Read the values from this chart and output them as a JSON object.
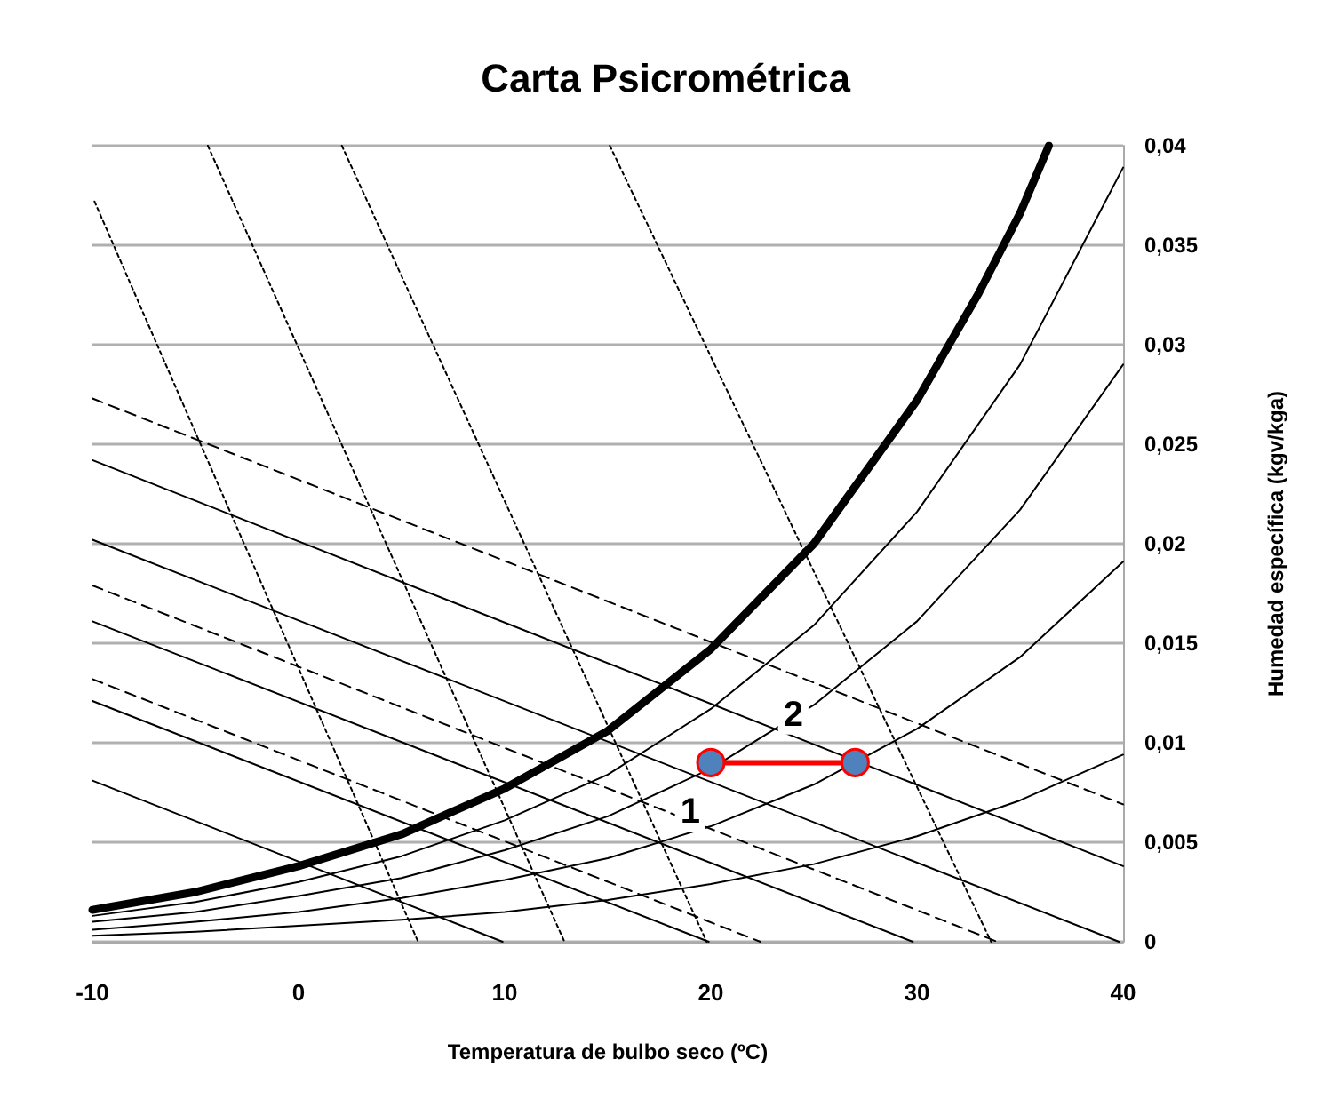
{
  "chart_data": {
    "type": "line",
    "title": "Carta Psicrométrica",
    "xlabel": "Temperatura de bulbo seco (ºC)",
    "ylabel": "Humedad específica (kgv/kga)",
    "xlim": [
      -10,
      40
    ],
    "xticks": [
      -10,
      0,
      10,
      20,
      30,
      40
    ],
    "ylim": [
      0,
      0.04
    ],
    "yticks": [
      {
        "value": 0,
        "label": "0"
      },
      {
        "value": 0.005,
        "label": "0,005"
      },
      {
        "value": 0.01,
        "label": "0,01"
      },
      {
        "value": 0.015,
        "label": "0,015"
      },
      {
        "value": 0.02,
        "label": "0,02"
      },
      {
        "value": 0.025,
        "label": "0,025"
      },
      {
        "value": 0.03,
        "label": "0,03"
      },
      {
        "value": 0.035,
        "label": "0,035"
      },
      {
        "value": 0.04,
        "label": "0,04"
      }
    ],
    "grid": "y",
    "marker": "none",
    "line_style": "solid",
    "series": [
      {
        "color": "#000000",
        "x": [
          -10,
          -5,
          0,
          5,
          10,
          15,
          20,
          25,
          30,
          33,
          35,
          36.4
        ],
        "values": [
          0.0016,
          0.0025,
          0.0038,
          0.0054,
          0.0077,
          0.0106,
          0.0147,
          0.02,
          0.0272,
          0.0326,
          0.0366,
          0.04
        ]
      },
      {
        "color": "#000000",
        "x": [
          -10,
          -5,
          0,
          5,
          10,
          15,
          20,
          25,
          30,
          35,
          40
        ],
        "values": [
          0.0013,
          0.002,
          0.003,
          0.0043,
          0.0061,
          0.0084,
          0.0117,
          0.0159,
          0.0216,
          0.029,
          0.0389
        ]
      },
      {
        "color": "#000000",
        "x": [
          -10,
          -5,
          0,
          5,
          10,
          15,
          20,
          25,
          30,
          35,
          40
        ],
        "values": [
          0.001,
          0.0015,
          0.0023,
          0.0032,
          0.0046,
          0.0063,
          0.0087,
          0.0119,
          0.0161,
          0.0217,
          0.029
        ]
      },
      {
        "color": "#000000",
        "x": [
          -10,
          -5,
          0,
          5,
          10,
          15,
          20,
          25,
          30,
          35,
          40
        ],
        "values": [
          0.0006,
          0.001,
          0.0015,
          0.0022,
          0.0031,
          0.0042,
          0.0058,
          0.0079,
          0.0107,
          0.0143,
          0.0191
        ]
      },
      {
        "color": "#000000",
        "x": [
          -10,
          -5,
          0,
          5,
          10,
          15,
          20,
          25,
          30,
          35,
          40
        ],
        "values": [
          0.0003,
          0.0005,
          0.0008,
          0.0011,
          0.0015,
          0.0021,
          0.0029,
          0.0039,
          0.0053,
          0.0071,
          0.0094
        ]
      },
      {
        "color": "#000000",
        "x": [
          -10,
          40
        ],
        "values": [
          0.0242,
          0.0038
        ]
      },
      {
        "color": "#000000",
        "x": [
          -10,
          39.8
        ],
        "values": [
          0.0202,
          0
        ]
      },
      {
        "color": "#000000",
        "x": [
          -10,
          29.8
        ],
        "values": [
          0.0161,
          0
        ]
      },
      {
        "color": "#000000",
        "x": [
          -10,
          19.9
        ],
        "values": [
          0.0121,
          0
        ]
      },
      {
        "color": "#000000",
        "x": [
          -10,
          9.9
        ],
        "values": [
          0.0081,
          0
        ]
      },
      {
        "color": "#000000",
        "line_style": "dashed",
        "x": [
          -10,
          40
        ],
        "values": [
          0.0273,
          0.0069
        ]
      },
      {
        "color": "#000000",
        "line_style": "dashed",
        "x": [
          -10,
          33.9
        ],
        "values": [
          0.0179,
          0
        ]
      },
      {
        "color": "#000000",
        "line_style": "dashed",
        "x": [
          -10,
          22.4
        ],
        "values": [
          0.0132,
          0
        ]
      },
      {
        "color": "#000000",
        "line_style": "dotted",
        "x": [
          -9.9,
          5.8
        ],
        "values": [
          0.0372,
          0
        ]
      },
      {
        "color": "#000000",
        "line_style": "dotted",
        "x": [
          -4.4,
          12.9
        ],
        "values": [
          0.04,
          0
        ]
      },
      {
        "color": "#000000",
        "line_style": "dotted",
        "x": [
          2.1,
          19.8
        ],
        "values": [
          0.04,
          0
        ]
      },
      {
        "color": "#000000",
        "line_style": "dotted",
        "x": [
          15.1,
          33.6
        ],
        "values": [
          0.04,
          0
        ]
      },
      {
        "color": "#ff0000",
        "marker": "circle",
        "x": [
          20,
          27
        ],
        "values": [
          0.009,
          0.009
        ]
      }
    ],
    "annotations": [
      "1",
      "2"
    ]
  }
}
